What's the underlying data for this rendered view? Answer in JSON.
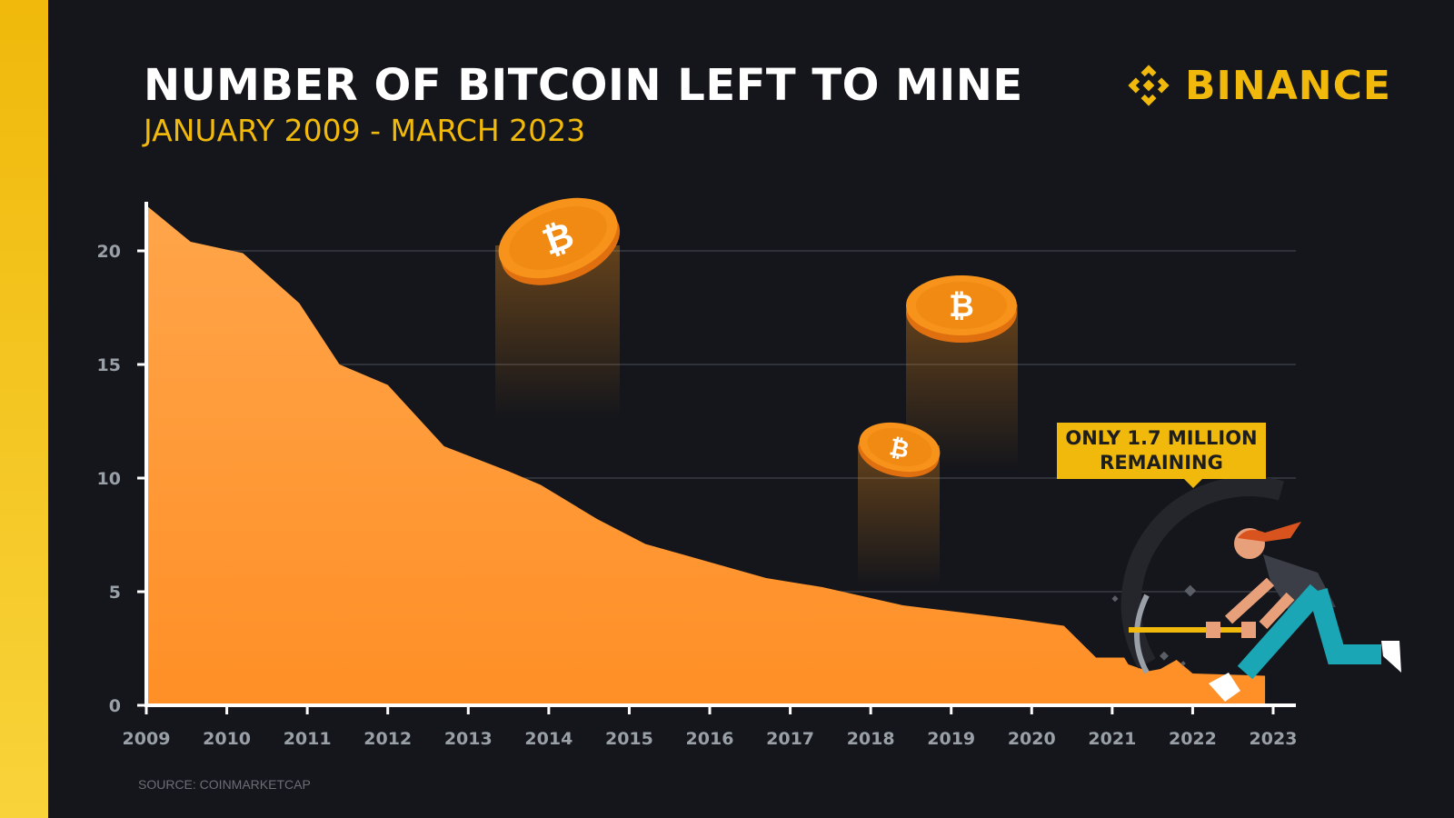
{
  "header": {
    "title": "NUMBER OF BITCOIN LEFT TO MINE",
    "subtitle": "JANUARY 2009 - MARCH 2023",
    "brand": "BINANCE"
  },
  "footer": {
    "source": "SOURCE: COINMARKETCAP"
  },
  "callout": {
    "line1": "ONLY 1.7 MILLION",
    "line2": "REMAINING"
  },
  "colors": {
    "background": "#15161b",
    "accent": "#f0b90b",
    "area_top": "#ffa54a",
    "area_bottom": "#ff8f26",
    "coin": "#f7931a"
  },
  "chart_data": {
    "type": "area",
    "title": "NUMBER OF BITCOIN LEFT TO MINE",
    "subtitle": "JANUARY 2009 - MARCH 2023",
    "xlabel": "",
    "ylabel": "",
    "xlim": [
      2009,
      2023
    ],
    "ylim": [
      0,
      22
    ],
    "x_ticks": [
      2009,
      2010,
      2011,
      2012,
      2013,
      2014,
      2015,
      2016,
      2017,
      2018,
      2019,
      2020,
      2021,
      2022,
      2023
    ],
    "y_ticks": [
      0,
      5,
      10,
      15,
      20
    ],
    "grid": true,
    "series": [
      {
        "name": "Bitcoin left to mine (millions)",
        "x": [
          2009,
          2009.55,
          2010.2,
          2010.9,
          2011.4,
          2012.0,
          2012.7,
          2013.5,
          2013.9,
          2014.6,
          2015.2,
          2016.0,
          2016.7,
          2017.4,
          2018.4,
          2019.1,
          2019.8,
          2020.4,
          2020.8,
          2021.15,
          2021.2,
          2021.45,
          2021.6,
          2021.8,
          2022.0,
          2022.9
        ],
        "values": [
          22,
          20.4,
          19.9,
          17.7,
          15.0,
          14.1,
          11.4,
          10.3,
          9.7,
          8.2,
          7.1,
          6.3,
          5.6,
          5.2,
          4.4,
          4.1,
          3.8,
          3.5,
          2.1,
          2.1,
          1.8,
          1.5,
          1.6,
          2.0,
          1.4,
          1.3
        ]
      }
    ],
    "legend": "none",
    "annotations": [
      "ONLY 1.7 MILLION REMAINING"
    ]
  }
}
